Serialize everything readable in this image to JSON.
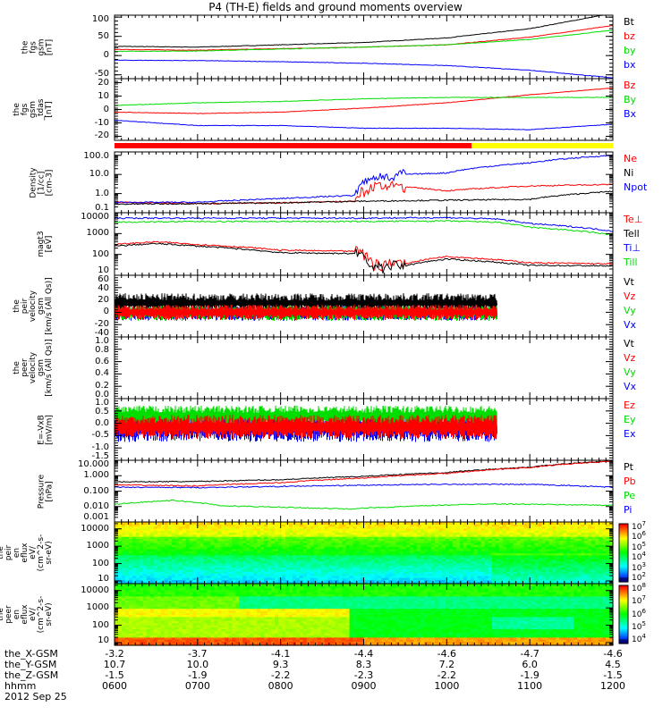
{
  "chart_data": {
    "type": "line",
    "title": "P4 (TH-E) fields and ground moments overview",
    "x_axis": {
      "label": "hhmm",
      "date": "2012 Sep 25",
      "ticks": [
        "0600",
        "0700",
        "0800",
        "0900",
        "1000",
        "1100",
        "1200"
      ],
      "extra_rows": [
        {
          "label": "the_X-GSM",
          "values": [
            "-3.2",
            "-3.7",
            "-4.1",
            "-4.4",
            "-4.6",
            "-4.7",
            "-4.6"
          ]
        },
        {
          "label": "the_Y-GSM",
          "values": [
            "10.7",
            "10.0",
            "9.3",
            "8.3",
            "7.2",
            "6.0",
            "4.5"
          ]
        },
        {
          "label": "the_Z-GSM",
          "values": [
            "-1.5",
            "-1.9",
            "-2.2",
            "-2.3",
            "-2.2",
            "-1.9",
            "-1.5"
          ]
        }
      ]
    },
    "panels": [
      {
        "id": "fgs-gsm",
        "ylabel": "the\nfgs\ngsm\n[nT]",
        "yscale": "linear",
        "ylim": [
          -60,
          105
        ],
        "yticks": [
          "100",
          "50",
          "0",
          "-50"
        ],
        "ytick_values": [
          100,
          50,
          0,
          -50
        ],
        "series": [
          {
            "name": "Bt",
            "color": "#000000",
            "x": [
              6,
              7,
              8,
              9,
              10,
              11,
              12
            ],
            "y": [
              24,
              22,
              28,
              34,
              46,
              70,
              110
            ]
          },
          {
            "name": "bz",
            "color": "#ff0000",
            "x": [
              6,
              7,
              8,
              9,
              10,
              11,
              12
            ],
            "y": [
              16,
              14,
              18,
              22,
              28,
              48,
              78
            ]
          },
          {
            "name": "by",
            "color": "#00dd00",
            "x": [
              6,
              7,
              8,
              9,
              10,
              11,
              12
            ],
            "y": [
              11,
              12,
              17,
              22,
              28,
              42,
              66
            ]
          },
          {
            "name": "bx",
            "color": "#0000ff",
            "x": [
              6,
              7,
              8,
              9,
              10,
              11,
              12
            ],
            "y": [
              -12,
              -13,
              -16,
              -20,
              -26,
              -38,
              -58
            ]
          }
        ]
      },
      {
        "id": "fgs-gsm-tdas",
        "ylabel": "the\nfgs\ngsm\n_tdas\n[nT]",
        "yscale": "linear",
        "ylim": [
          -23,
          23
        ],
        "yticks": [
          "20",
          "10",
          "0",
          "-10",
          "-20"
        ],
        "ytick_values": [
          20,
          10,
          0,
          -10,
          -20
        ],
        "series": [
          {
            "name": "Bz",
            "color": "#ff0000",
            "x": [
              6,
              7,
              8,
              9,
              10,
              11,
              12
            ],
            "y": [
              -2,
              -3,
              -2,
              1,
              5,
              11,
              16
            ]
          },
          {
            "name": "By",
            "color": "#00dd00",
            "x": [
              6,
              7,
              8,
              9,
              10,
              11,
              12
            ],
            "y": [
              3,
              5,
              6,
              8,
              9,
              9,
              9
            ]
          },
          {
            "name": "Bx",
            "color": "#0000ff",
            "x": [
              6,
              7,
              8,
              9,
              10,
              11,
              12
            ],
            "y": [
              -8,
              -12,
              -12,
              -14,
              -14,
              -15,
              -11
            ]
          }
        ]
      },
      {
        "id": "density",
        "ylabel": "Density\n[1/cc]\n[cm-3]",
        "yscale": "log",
        "ylim": [
          0.1,
          150
        ],
        "yticks": [
          "100.0",
          "10.0",
          "1.0",
          "0.1"
        ],
        "ytick_values": [
          100,
          10,
          1,
          0.1
        ],
        "series": [
          {
            "name": "Ne",
            "color": "#ff0000",
            "x": [
              6,
              7,
              8,
              8.9,
              9.1,
              9.5,
              10,
              11,
              12
            ],
            "y": [
              0.35,
              0.3,
              0.33,
              0.4,
              2,
              2.2,
              1.4,
              2.5,
              3
            ]
          },
          {
            "name": "Ni",
            "color": "#000000",
            "x": [
              6,
              7,
              8,
              9,
              10,
              11,
              12
            ],
            "y": [
              0.28,
              0.3,
              0.33,
              0.4,
              0.45,
              0.5,
              1.3
            ]
          },
          {
            "name": "Npot",
            "color": "#0000ff",
            "x": [
              6,
              7,
              8,
              8.9,
              9.1,
              9.5,
              10,
              11,
              12
            ],
            "y": [
              0.35,
              0.35,
              0.55,
              0.8,
              5,
              10,
              12,
              40,
              100
            ]
          }
        ]
      },
      {
        "id": "temperature",
        "ylabel": "magt3\n[eV]",
        "yscale": "log",
        "ylim": [
          10,
          10000
        ],
        "yticks": [
          "10000",
          "1000",
          "100",
          "10"
        ],
        "ytick_values": [
          10000,
          1000,
          100,
          10
        ],
        "series": [
          {
            "name": "Te⊥",
            "color": "#ff0000",
            "x": [
              6,
              6.5,
              7,
              8,
              8.9,
              9.1,
              9.5,
              10,
              11,
              12
            ],
            "y": [
              300,
              400,
              300,
              160,
              140,
              30,
              35,
              80,
              40,
              35
            ]
          },
          {
            "name": "Tell",
            "color": "#000000",
            "x": [
              6,
              6.5,
              7,
              8,
              8.9,
              9.1,
              9.5,
              10,
              11,
              12
            ],
            "y": [
              250,
              330,
              250,
              120,
              110,
              20,
              28,
              60,
              30,
              28
            ]
          },
          {
            "name": "Ti⊥",
            "color": "#0000ff",
            "x": [
              6,
              7,
              8,
              9,
              10,
              10.6,
              11,
              12
            ],
            "y": [
              5500,
              5500,
              5500,
              5500,
              5800,
              5000,
              3000,
              1300
            ]
          },
          {
            "name": "Till",
            "color": "#00dd00",
            "x": [
              6,
              7,
              8,
              9,
              10,
              10.6,
              11,
              12
            ],
            "y": [
              3500,
              3800,
              3800,
              3800,
              4000,
              3500,
              2000,
              850
            ]
          }
        ]
      },
      {
        "id": "peir-velocity",
        "ylabel": "the\npeir\nvelocity\ngsm\n[km/s (All Qs)]",
        "yscale": "linear",
        "ylim": [
          -40,
          60
        ],
        "yticks": [
          "60",
          "40",
          "20",
          "0",
          "-20",
          "-40"
        ],
        "ytick_values": [
          60,
          40,
          20,
          0,
          -20,
          -40
        ],
        "data_end": 10.6,
        "series": [
          {
            "name": "Vt",
            "color": "#000000",
            "note": "noisy 10-40 km/s, data ends ~1036"
          },
          {
            "name": "Vz",
            "color": "#ff0000",
            "note": "noisy around 0"
          },
          {
            "name": "Vy",
            "color": "#00dd00",
            "note": "noisy around 0"
          },
          {
            "name": "Vx",
            "color": "#0000ff",
            "note": "noisy around 0"
          }
        ]
      },
      {
        "id": "peer-velocity",
        "ylabel": "the\npeer\nvelocity\ngsm\n[km/s (All Qs)]",
        "yscale": "linear",
        "ylim": [
          0,
          1
        ],
        "yticks": [
          "1.0",
          "0.8",
          "0.6",
          "0.4",
          "0.2",
          "0.0"
        ],
        "ytick_values": [
          1,
          0.8,
          0.6,
          0.4,
          0.2,
          0
        ],
        "series": [
          {
            "name": "Vt",
            "color": "#000000"
          },
          {
            "name": "Vz",
            "color": "#ff0000"
          },
          {
            "name": "Vy",
            "color": "#00dd00"
          },
          {
            "name": "Vx",
            "color": "#0000ff"
          }
        ]
      },
      {
        "id": "efield",
        "ylabel": "E=-VxB\n[mV/m]",
        "yscale": "linear",
        "ylim": [
          -1.5,
          1.0
        ],
        "yticks": [
          "1.0",
          "0.5",
          "0.0",
          "-0.5",
          "-1.0",
          "-1.5"
        ],
        "ytick_values": [
          1,
          0.5,
          0,
          -0.5,
          -1,
          -1.5
        ],
        "data_end": 10.6,
        "series": [
          {
            "name": "Ez",
            "color": "#ff0000",
            "note": "noisy around -0.2"
          },
          {
            "name": "Ey",
            "color": "#00dd00",
            "note": "noisy around 0.3"
          },
          {
            "name": "Ex",
            "color": "#0000ff",
            "note": "noisy around -0.2"
          }
        ]
      },
      {
        "id": "pressure",
        "ylabel": "Pressure\n[nPa]",
        "yscale": "log",
        "ylim": [
          0.001,
          10
        ],
        "yticks": [
          "10.000",
          "1.000",
          "0.100",
          "0.010",
          "0.001"
        ],
        "ytick_values": [
          10,
          1,
          0.1,
          0.01,
          0.001
        ],
        "series": [
          {
            "name": "Pt",
            "color": "#000000",
            "x": [
              6,
              7,
              8,
              9,
              10,
              11,
              12
            ],
            "y": [
              0.4,
              0.42,
              0.55,
              0.9,
              1.6,
              3.5,
              9
            ]
          },
          {
            "name": "Pb",
            "color": "#ff0000",
            "x": [
              6,
              7,
              8,
              9,
              10,
              11,
              12
            ],
            "y": [
              0.25,
              0.22,
              0.35,
              0.7,
              1.4,
              3.3,
              8.5
            ]
          },
          {
            "name": "Pe",
            "color": "#00dd00",
            "x": [
              6,
              6.7,
              7.3,
              8,
              8.8,
              9.5,
              10.5,
              12
            ],
            "y": [
              0.014,
              0.025,
              0.011,
              0.009,
              0.007,
              0.01,
              0.015,
              0.012
            ]
          },
          {
            "name": "Pi",
            "color": "#0000ff",
            "x": [
              6,
              7,
              8,
              9,
              10,
              11,
              12
            ],
            "y": [
              0.18,
              0.17,
              0.2,
              0.24,
              0.28,
              0.27,
              0.18
            ]
          }
        ]
      },
      {
        "id": "peir-spectrogram",
        "type": "heatmap",
        "ylabel": "the\npeir\nen\neflux\neV/\n(cm^2-s-\nsr-eV)",
        "yscale": "log",
        "ylim": [
          7,
          25000
        ],
        "yticks": [
          "10000",
          "1000",
          "100",
          "10"
        ],
        "ytick_values": [
          10000,
          1000,
          100,
          10
        ],
        "colorbar": {
          "ticks": [
            "10^7",
            "10^6",
            "10^5",
            "10^4",
            "10^3",
            "10^2"
          ],
          "range": [
            100,
            30000000
          ]
        }
      },
      {
        "id": "peer-spectrogram",
        "type": "heatmap",
        "ylabel": "the\npeer\nen\neflux\neV/\n(cm^2-s-\nsr-eV)",
        "yscale": "log",
        "ylim": [
          7,
          25000
        ],
        "yticks": [
          "10000",
          "1000",
          "100",
          "10"
        ],
        "ytick_values": [
          10000,
          1000,
          100,
          10
        ],
        "colorbar": {
          "ticks": [
            "10^8",
            "10^7",
            "10^6",
            "10^5",
            "10^4"
          ],
          "range": [
            5000,
            150000000
          ]
        }
      }
    ],
    "mode_bar": {
      "segments": [
        {
          "color": "#ff0000",
          "from": 6.0,
          "to": 10.3
        },
        {
          "color": "#ffff00",
          "from": 10.3,
          "to": 12.0
        }
      ]
    }
  }
}
